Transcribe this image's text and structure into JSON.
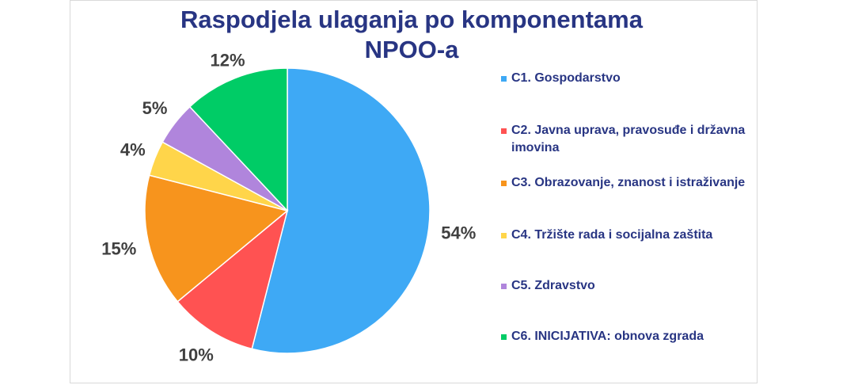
{
  "chart_data": {
    "type": "pie",
    "title": [
      "Raspodjela ulaganja po komponentama",
      "NPOO-a"
    ],
    "categories": [
      "C1. Gospodarstvo",
      "C2. Javna uprava, pravosuđe i državna imovina",
      "C3. Obrazovanje, znanost i istraživanje",
      "C4. Tržište rada i socijalna zaštita",
      "C5. Zdravstvo",
      "C6. INICIJATIVA: obnova zgrada"
    ],
    "values": [
      54,
      10,
      15,
      4,
      5,
      12
    ],
    "labels": [
      "54%",
      "10%",
      "15%",
      "4%",
      "5%",
      "12%"
    ],
    "colors": [
      "#3EA9F5",
      "#FF5252",
      "#F7941D",
      "#FFD54A",
      "#B085DC",
      "#00CC66"
    ],
    "start_angle": "12 o'clock",
    "direction": "clockwise",
    "legend": "right"
  }
}
